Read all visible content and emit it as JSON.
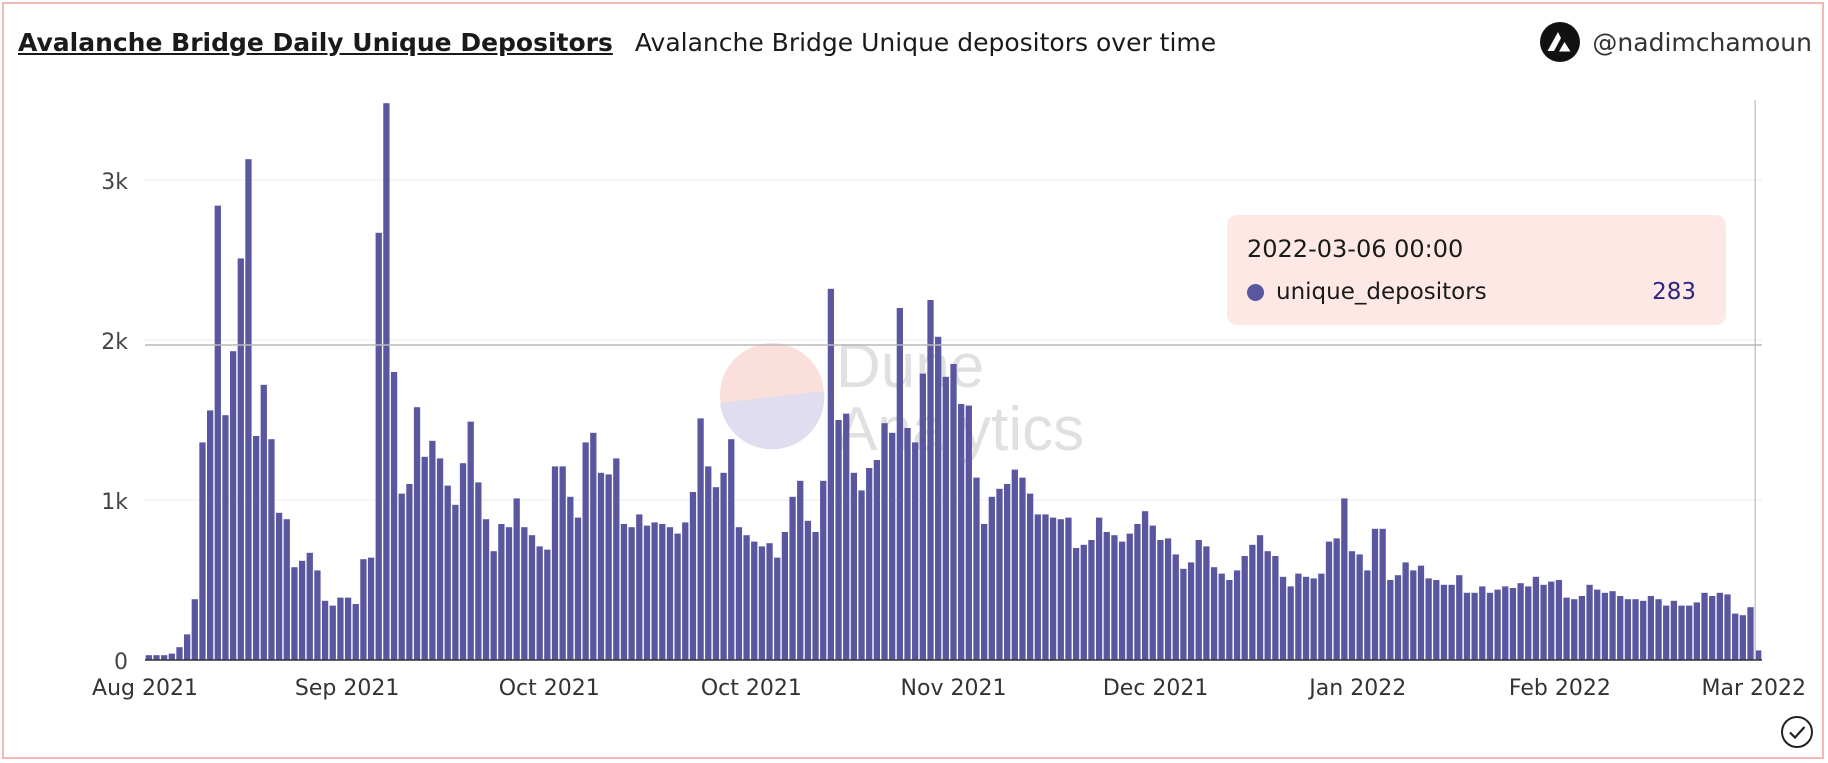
{
  "header": {
    "title": "Avalanche Bridge Daily Unique Depositors",
    "subtitle": "Avalanche Bridge Unique depositors over time",
    "author": "@nadimchamoun"
  },
  "watermark": {
    "line1": "Dune",
    "line2": "Analytics"
  },
  "tooltip": {
    "date": "2022-03-06 00:00",
    "series": "unique_depositors",
    "value": "283"
  },
  "colors": {
    "bar": "#5a57a0",
    "tooltip_bg": "#fde8e6",
    "frame": "#f2b8b5"
  },
  "chart_data": {
    "type": "bar",
    "title": "Avalanche Bridge Daily Unique Depositors",
    "subtitle": "Avalanche Bridge Unique depositors over time",
    "x_start": "2021-08-06",
    "x_end": "2022-03-06",
    "ylim": [
      0,
      3500
    ],
    "y_ticks": [
      0,
      1000,
      2000,
      3000
    ],
    "y_tick_labels": [
      "0",
      "1k",
      "2k",
      "3k"
    ],
    "x_tick_labels": [
      "Aug 2021",
      "Sep 2021",
      "Oct 2021",
      "Oct 2021",
      "Nov 2021",
      "Dec 2021",
      "Jan 2022",
      "Feb 2022",
      "Mar 2022"
    ],
    "grid": true,
    "legend": "tooltip",
    "series": [
      {
        "name": "unique_depositors",
        "values": [
          30,
          30,
          30,
          40,
          80,
          160,
          380,
          1360,
          1560,
          2840,
          1530,
          1930,
          2510,
          3130,
          1400,
          1720,
          1380,
          920,
          880,
          580,
          620,
          670,
          560,
          370,
          340,
          390,
          390,
          350,
          630,
          640,
          2670,
          3480,
          1800,
          1040,
          1100,
          1580,
          1270,
          1370,
          1260,
          1090,
          970,
          1230,
          1490,
          1110,
          880,
          680,
          850,
          830,
          1010,
          830,
          780,
          710,
          690,
          1210,
          1210,
          1020,
          890,
          1360,
          1420,
          1170,
          1160,
          1260,
          850,
          830,
          910,
          840,
          860,
          850,
          830,
          790,
          860,
          1050,
          1510,
          1210,
          1080,
          1170,
          1380,
          830,
          780,
          740,
          710,
          730,
          640,
          800,
          1020,
          1120,
          870,
          800,
          1120,
          2320,
          1500,
          1540,
          1170,
          1060,
          1200,
          1250,
          1480,
          1420,
          2200,
          1450,
          1360,
          1790,
          2250,
          2020,
          1770,
          1850,
          1600,
          1590,
          1140,
          850,
          1020,
          1070,
          1100,
          1190,
          1140,
          1040,
          910,
          910,
          890,
          880,
          890,
          700,
          720,
          750,
          890,
          800,
          780,
          740,
          790,
          850,
          930,
          840,
          750,
          760,
          660,
          570,
          610,
          750,
          710,
          580,
          540,
          500,
          560,
          650,
          720,
          780,
          680,
          650,
          520,
          460,
          540,
          520,
          510,
          540,
          740,
          760,
          1010,
          680,
          660,
          560,
          820,
          820,
          500,
          530,
          610,
          560,
          590,
          510,
          500,
          470,
          470,
          530,
          420,
          420,
          460,
          420,
          440,
          460,
          450,
          480,
          460,
          520,
          470,
          490,
          500,
          390,
          380,
          400,
          470,
          440,
          420,
          430,
          400,
          380,
          380,
          370,
          400,
          380,
          340,
          370,
          340,
          340,
          360,
          420,
          400,
          420,
          410,
          290,
          280,
          330,
          60
        ]
      }
    ]
  }
}
